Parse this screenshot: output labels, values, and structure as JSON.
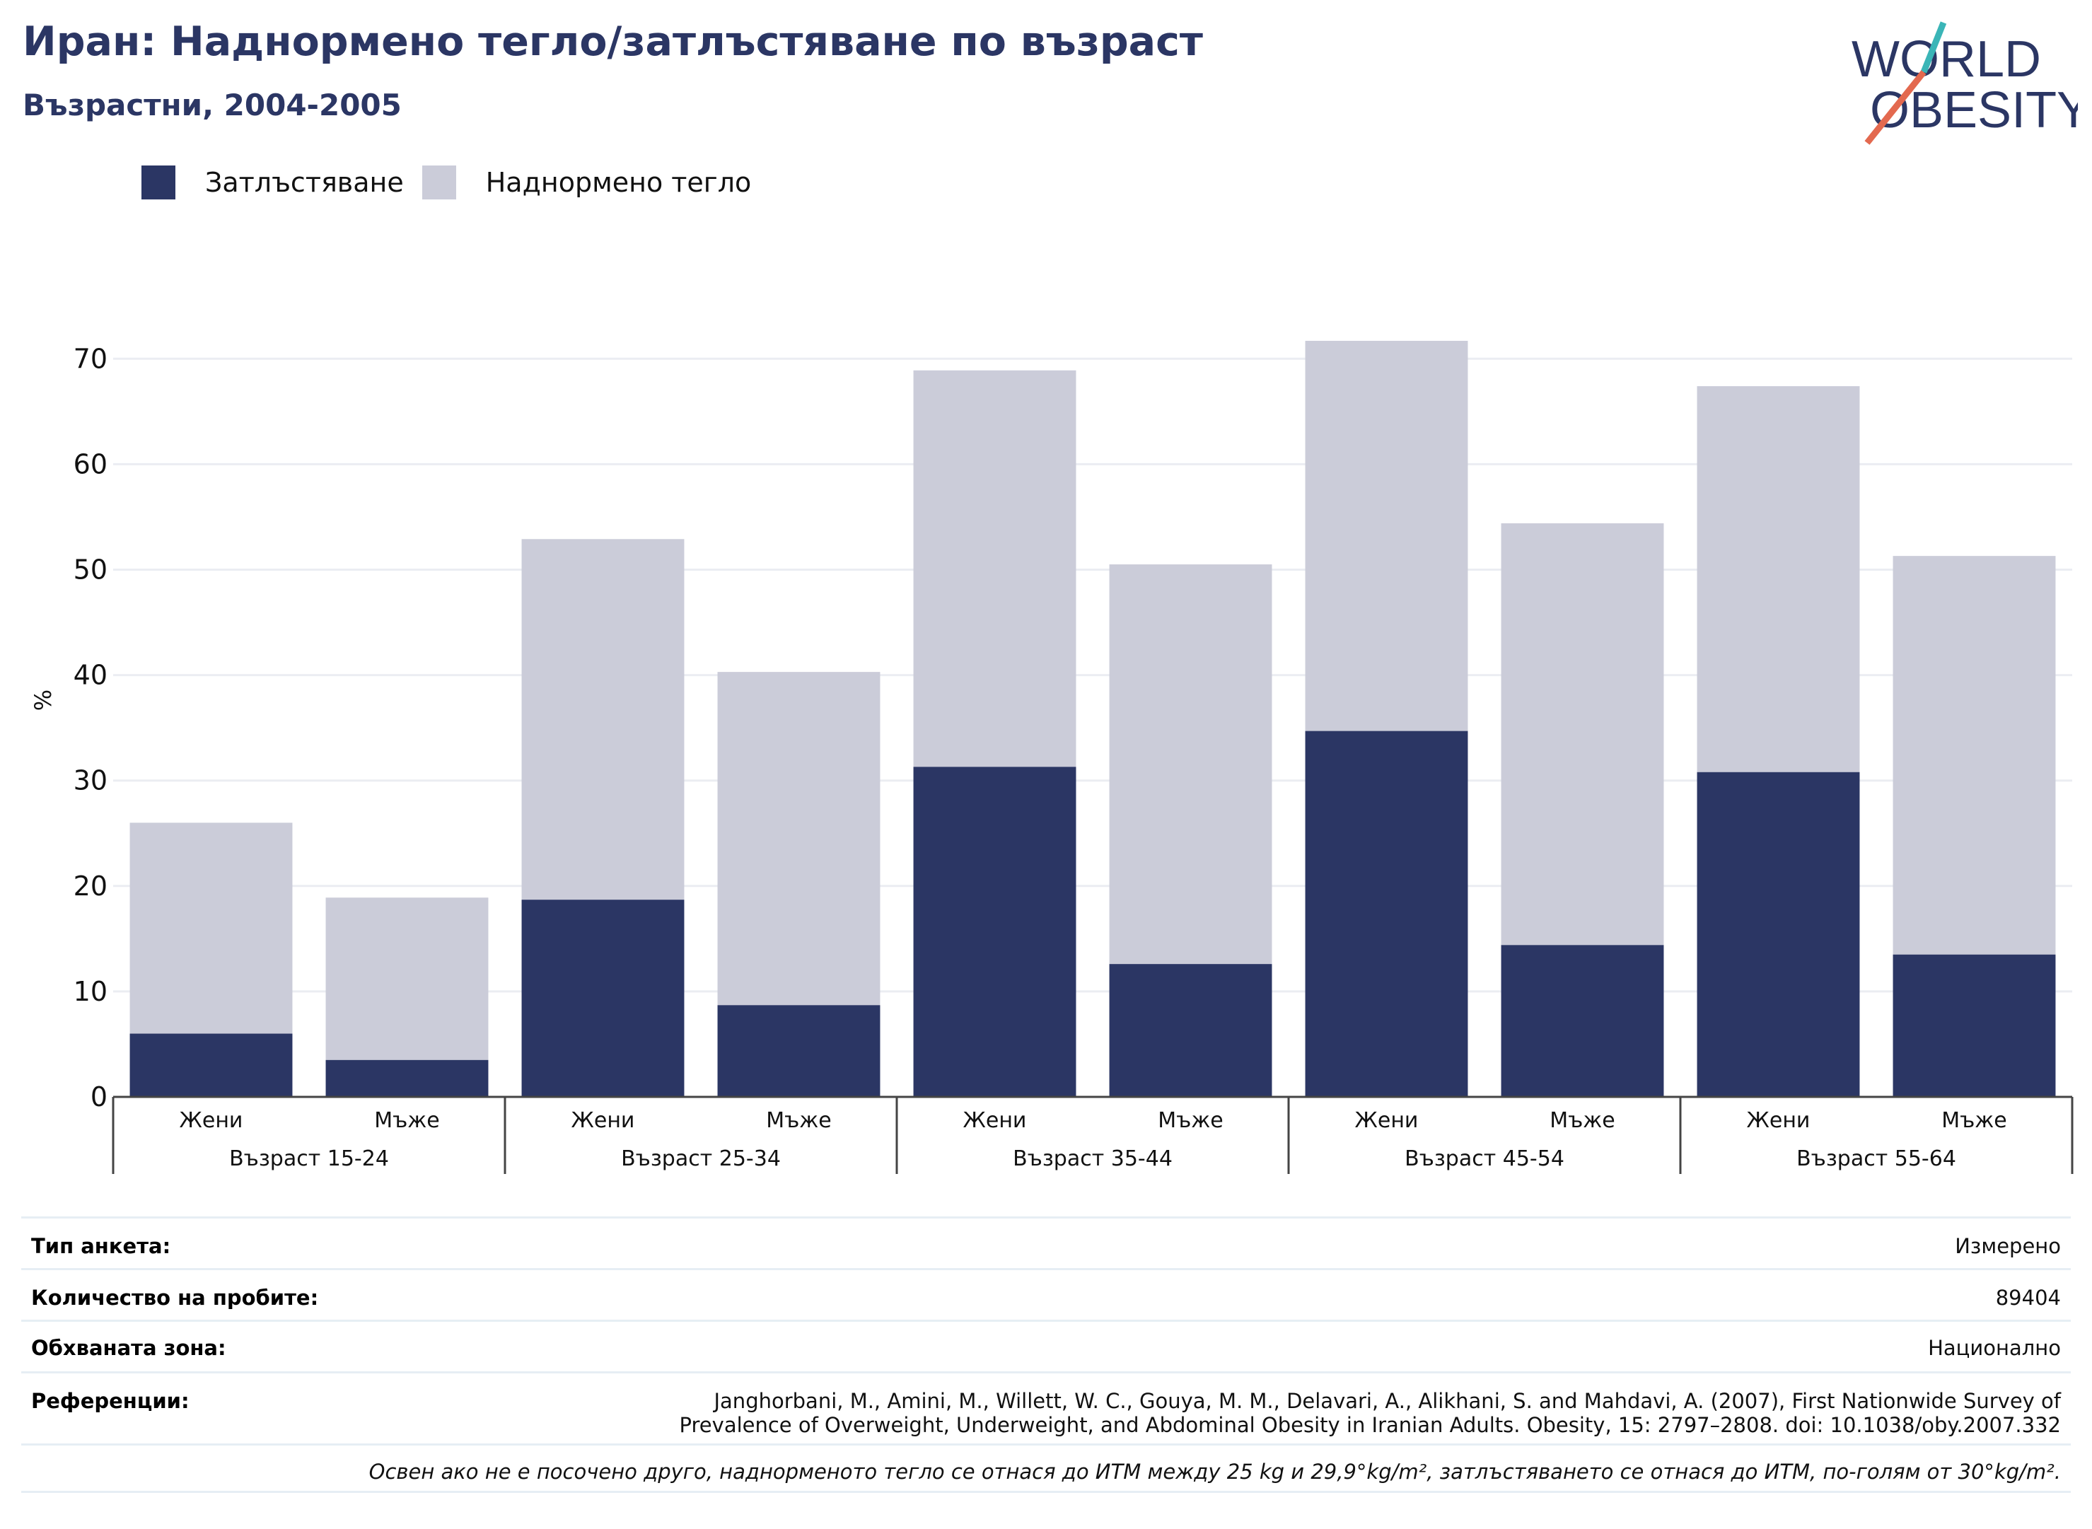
{
  "title": "Иран: Наднормено тегло/затлъстяване по възраст",
  "subtitle": "Възрастни, 2004-2005",
  "logo": {
    "line1": "WORLD",
    "line2": "OBESITY"
  },
  "colors": {
    "obesity": "#2b3664",
    "overweight": "#cbccd9",
    "title": "#2b3664",
    "grid": "#ebedf2",
    "logo_teal": "#3ab5b7",
    "logo_red": "#e3694f"
  },
  "legend": [
    {
      "label": "Затлъстяване",
      "color": "#2b3664"
    },
    {
      "label": "Наднормено тегло",
      "color": "#cbccd9"
    }
  ],
  "chart_data": {
    "type": "bar",
    "stacked": true,
    "ylabel": "%",
    "ylim": [
      0,
      72
    ],
    "yticks": [
      0,
      10,
      20,
      30,
      40,
      50,
      60,
      70
    ],
    "grid": true,
    "legend_position": "top-left",
    "groups": [
      "Възраст 15-24",
      "Възраст 25-34",
      "Възраст 35-44",
      "Възраст 45-54",
      "Възраст 55-64"
    ],
    "categories": [
      "Жени",
      "Мъже",
      "Жени",
      "Мъже",
      "Жени",
      "Мъже",
      "Жени",
      "Мъже",
      "Жени",
      "Мъже"
    ],
    "series": [
      {
        "name": "Затлъстяване",
        "values": [
          6.0,
          3.5,
          18.7,
          8.7,
          31.3,
          12.6,
          34.7,
          14.4,
          30.8,
          13.5
        ]
      },
      {
        "name": "Наднормено тегло",
        "values": [
          20.0,
          15.4,
          34.2,
          31.6,
          37.6,
          37.9,
          37.0,
          40.0,
          36.6,
          37.8
        ]
      }
    ]
  },
  "info": {
    "survey_type": {
      "label": "Тип анкета:",
      "value": "Измерено"
    },
    "sample_size": {
      "label": "Количество на пробите:",
      "value": "89404"
    },
    "area": {
      "label": "Обхваната зона:",
      "value": "Национално"
    },
    "references": {
      "label": "Референции:",
      "line1": "Janghorbani, M., Amini, M., Willett, W. C., Gouya, M. M., Delavari, A., Alikhani, S. and Mahdavi, A. (2007), First Nationwide Survey of",
      "line2": "Prevalence of Overweight, Underweight, and Abdominal Obesity in Iranian Adults. Obesity, 15: 2797–2808. doi: 10.1038/oby.2007.332"
    },
    "note": "Освен ако не е посочено друго, наднорменото тегло се отнася до ИТМ между 25 kg и 29,9°kg/m², затлъстяването се отнася до ИТМ, по-голям от 30°kg/m²."
  }
}
